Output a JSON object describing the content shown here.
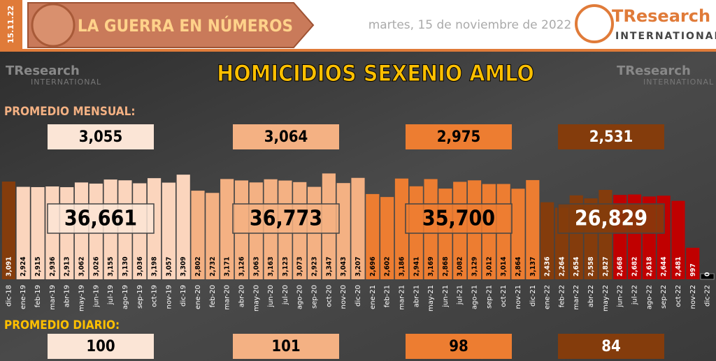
{
  "header": {
    "date_code": "15.11.22",
    "banner": "LA GUERRA EN NÚMEROS",
    "date": "martes, 15 de noviembre de 2022",
    "logo": "TResearch",
    "logo_sub": "INTERNATIONAL"
  },
  "chart_data": {
    "type": "bar",
    "title": "HOMICIDIOS SEXENIO AMLO",
    "monthly_label": "PROMEDIO MENSUAL:",
    "daily_label": "PROMEDIO DIARIO:",
    "categories": [
      "dic-18",
      "ene-19",
      "feb-19",
      "mar-19",
      "abr-19",
      "may-19",
      "jun-19",
      "jul-19",
      "ago-19",
      "sep-19",
      "oct-19",
      "nov-19",
      "dic-19",
      "ene-20",
      "feb-20",
      "mar-20",
      "abr-20",
      "may-20",
      "jun-20",
      "jul-20",
      "ago-20",
      "sep-20",
      "oct-20",
      "nov-20",
      "dic-20",
      "ene-21",
      "feb-21",
      "mar-21",
      "abr-21",
      "may-21",
      "jun-21",
      "jul-21",
      "ago-21",
      "sep-21",
      "oct-21",
      "nov-21",
      "dic-21",
      "ene-22",
      "feb-22",
      "mar-22",
      "abr-22",
      "may-22",
      "jun-22",
      "jul-22",
      "ago-22",
      "sep-22",
      "oct-22",
      "nov-22",
      "dic-22"
    ],
    "values": [
      3091,
      2924,
      2915,
      2936,
      2913,
      3062,
      3026,
      3155,
      3130,
      3036,
      3198,
      3057,
      3309,
      2802,
      2732,
      3171,
      3126,
      3063,
      3163,
      3123,
      3073,
      2923,
      3347,
      3043,
      3207,
      2696,
      2602,
      3186,
      2941,
      3169,
      2868,
      3082,
      3129,
      3012,
      3014,
      2864,
      3137,
      2436,
      2264,
      2654,
      2558,
      2827,
      2668,
      2682,
      2618,
      2644,
      2481,
      997,
      0
    ],
    "value_labels": [
      "3,091",
      "2,924",
      "2,915",
      "2,936",
      "2,913",
      "3,062",
      "3,026",
      "3,155",
      "3,130",
      "3,036",
      "3,198",
      "3,057",
      "3,309",
      "2,802",
      "2,732",
      "3,171",
      "3,126",
      "3,063",
      "3,163",
      "3,123",
      "3,073",
      "2,923",
      "3,347",
      "3,043",
      "3,207",
      "2,696",
      "2,602",
      "3,186",
      "2,941",
      "3,169",
      "2,868",
      "3,082",
      "3,129",
      "3,012",
      "3,014",
      "2,864",
      "3,137",
      "2,436",
      "2,264",
      "2,654",
      "2,558",
      "2,827",
      "2,668",
      "2,682",
      "2,618",
      "2,644",
      "2,481",
      "997",
      "0"
    ],
    "colors": [
      "#843c0c",
      "#fbd5bd",
      "#fbd5bd",
      "#fbd5bd",
      "#fbd5bd",
      "#fbd5bd",
      "#fbd5bd",
      "#fbd5bd",
      "#fbd5bd",
      "#fbd5bd",
      "#fbd5bd",
      "#fbd5bd",
      "#fbd5bd",
      "#f4b183",
      "#f4b183",
      "#f4b183",
      "#f4b183",
      "#f4b183",
      "#f4b183",
      "#f4b183",
      "#f4b183",
      "#f4b183",
      "#f4b183",
      "#f4b183",
      "#f4b183",
      "#ed7d31",
      "#ed7d31",
      "#ed7d31",
      "#ed7d31",
      "#ed7d31",
      "#ed7d31",
      "#ed7d31",
      "#ed7d31",
      "#ed7d31",
      "#ed7d31",
      "#ed7d31",
      "#ed7d31",
      "#843c0c",
      "#843c0c",
      "#843c0c",
      "#843c0c",
      "#843c0c",
      "#c00000",
      "#c00000",
      "#c00000",
      "#c00000",
      "#c00000",
      "#c00000",
      "#000000"
    ],
    "ylim": [
      0,
      3400
    ],
    "groups": [
      {
        "monthly": "3,055",
        "total": "36,661",
        "daily": "100"
      },
      {
        "monthly": "3,064",
        "total": "36,773",
        "daily": "101"
      },
      {
        "monthly": "2,975",
        "total": "35,700",
        "daily": "98"
      },
      {
        "monthly": "2,531",
        "total": "26,829",
        "daily": "84"
      }
    ]
  }
}
